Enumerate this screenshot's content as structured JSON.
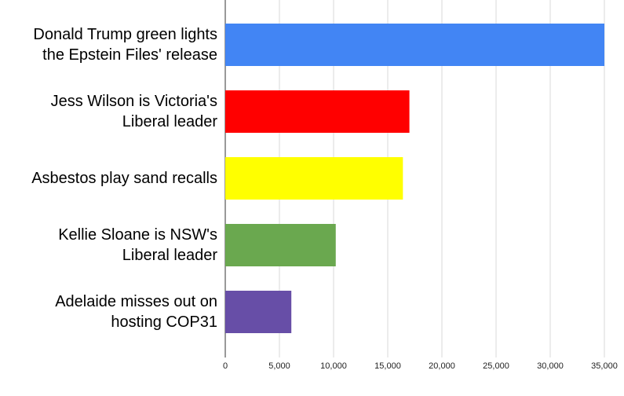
{
  "chart_data": {
    "type": "barh",
    "categories": [
      "Donald Trump green lights the Epstein Files' release",
      "Jess Wilson is Victoria's Liberal leader",
      "Asbestos play sand recalls",
      "Kellie Sloane is NSW's Liberal leader",
      "Adelaide misses out on hosting COP31"
    ],
    "values": [
      35000,
      17000,
      16400,
      10200,
      6100
    ],
    "colors": [
      "#4285f4",
      "#ff0000",
      "#ffff00",
      "#6aa84f",
      "#674ea7"
    ],
    "xlim": [
      0,
      35000
    ],
    "xticks": [
      0,
      {
        "value": 5000,
        "label": "5,000"
      },
      {
        "value": 10000,
        "label": "10,000"
      },
      {
        "value": 15000,
        "label": "15,000"
      },
      {
        "value": 20000,
        "label": "20,000"
      },
      {
        "value": 25000,
        "label": "25,000"
      },
      {
        "value": 30000,
        "label": "30,000"
      },
      {
        "value": 35000,
        "label": "35,000"
      }
    ],
    "grid": true
  }
}
